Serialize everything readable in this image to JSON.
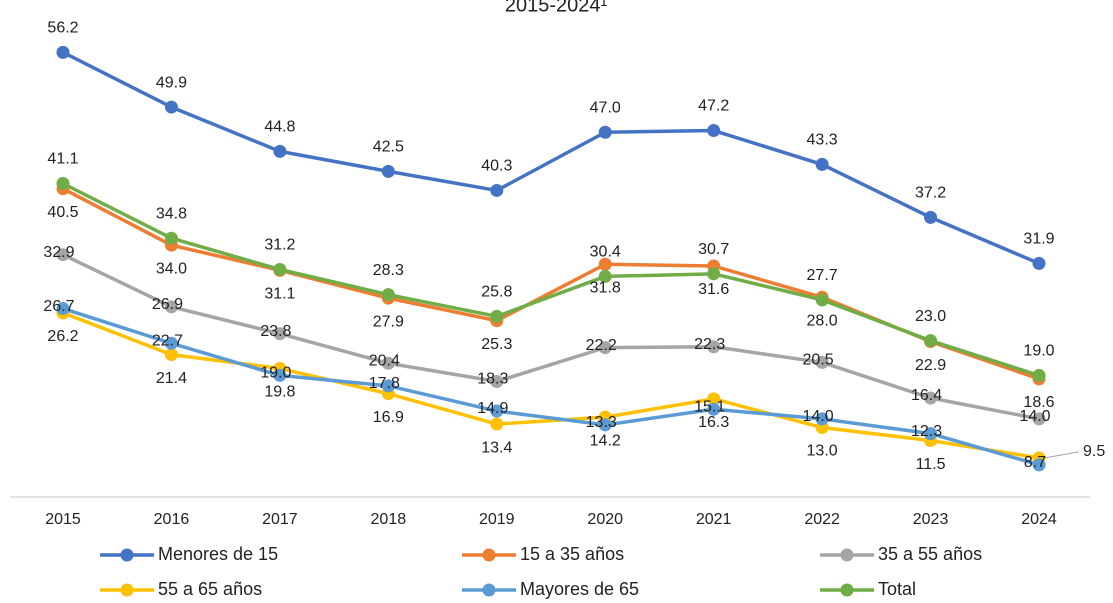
{
  "chart_data": {
    "type": "line",
    "title": "2015-2024¹",
    "categories": [
      "2015",
      "2016",
      "2017",
      "2018",
      "2019",
      "2020",
      "2021",
      "2022",
      "2023",
      "2024"
    ],
    "ylim": [
      5,
      62
    ],
    "series": [
      {
        "name": "Menores de 15",
        "color": "#4472c4",
        "values": [
          56.2,
          49.9,
          44.8,
          42.5,
          40.3,
          47.0,
          47.2,
          43.3,
          37.2,
          31.9
        ],
        "value_labels": [
          "56.2",
          "49.9",
          "44.8",
          "42.5",
          "40.3",
          "47.0",
          "47.2",
          "43.3",
          "37.2",
          "31.9"
        ]
      },
      {
        "name": "15 a 35 años",
        "color": "#ed7d31",
        "values": [
          40.5,
          34.0,
          31.1,
          27.9,
          25.3,
          31.8,
          31.6,
          28.0,
          22.9,
          18.6
        ],
        "value_labels": [
          "40.5",
          "34.0",
          "31.1",
          "27.9",
          "25.3",
          "31.8",
          "31.6",
          "28.0",
          "22.9",
          "18.6"
        ]
      },
      {
        "name": "35 a 55 años",
        "color": "#a5a5a5",
        "values": [
          32.9,
          26.9,
          23.8,
          20.4,
          18.3,
          22.2,
          22.3,
          20.5,
          16.4,
          14.0
        ],
        "value_labels": [
          "32.9",
          "26.9",
          "23.8",
          "20.4",
          "18.3",
          "22.2",
          "22.3",
          "20.5",
          "16.4",
          "14.0"
        ]
      },
      {
        "name": "55 a 65 años",
        "color": "#ffc000",
        "values": [
          26.2,
          21.4,
          19.8,
          16.9,
          13.4,
          14.2,
          16.3,
          13.0,
          11.5,
          9.5
        ],
        "value_labels": [
          "26.2",
          "21.4",
          "19.8",
          "16.9",
          "13.4",
          "14.2",
          "16.3",
          "13.0",
          "11.5",
          "9.5"
        ]
      },
      {
        "name": "Mayores de 65",
        "color": "#5b9bd5",
        "values": [
          26.7,
          22.7,
          19.0,
          17.8,
          14.9,
          13.3,
          15.1,
          14.0,
          12.3,
          8.7
        ],
        "value_labels": [
          "26.7",
          "22.7",
          "19.0",
          "17.8",
          "14.9",
          "13.3",
          "15.1",
          "14.0",
          "12.3",
          "8.7"
        ]
      },
      {
        "name": "Total",
        "color": "#70ad47",
        "values": [
          41.1,
          34.8,
          31.2,
          28.3,
          25.8,
          30.4,
          30.7,
          27.7,
          23.0,
          19.0
        ],
        "value_labels": [
          "41.1",
          "34.8",
          "31.2",
          "28.3",
          "25.8",
          "30.4",
          "30.7",
          "27.7",
          "23.0",
          "19.0"
        ]
      }
    ]
  }
}
